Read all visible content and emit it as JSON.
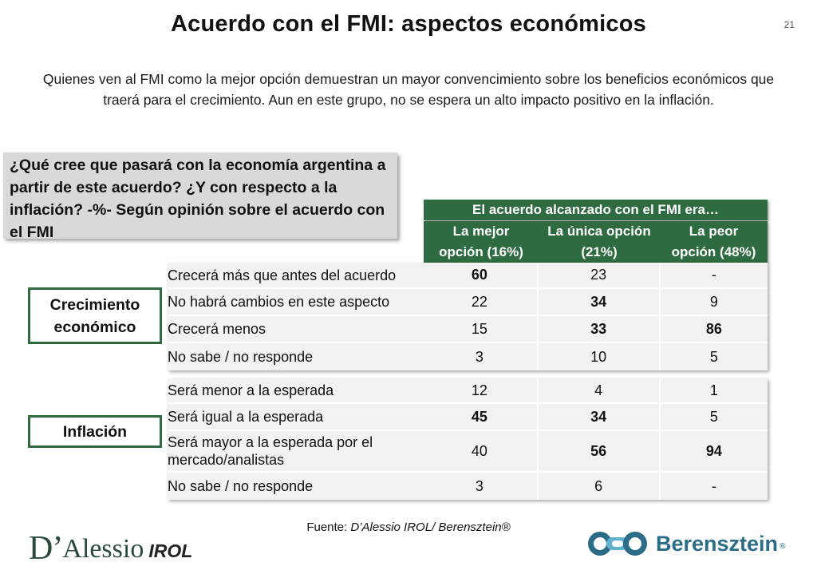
{
  "header": {
    "title": "Acuerdo con el FMI: aspectos económicos",
    "page_number": "21"
  },
  "subtitle": "Quienes ven al FMI como la mejor opción demuestran un mayor convencimiento sobre los beneficios económicos que traerá para el crecimiento. Aun en este grupo, no se espera un alto impacto positivo en la inflación.",
  "question": "¿Qué cree que pasará con la economía argentina a partir de este acuerdo? ¿Y con respecto a la inflación? -%- Según opinión sobre el acuerdo con el FMI",
  "table": {
    "group_header": "El acuerdo alcanzado con el FMI era…",
    "columns": [
      {
        "line1": "La mejor",
        "line2": "opción (16%)"
      },
      {
        "line1": "La única opción",
        "line2": "(21%)"
      },
      {
        "line1": "La peor",
        "line2": "opción (48%)"
      }
    ]
  },
  "sections": {
    "growth": {
      "label": "Crecimiento económico",
      "rows": [
        {
          "label": "Crecerá más que antes del acuerdo",
          "values": [
            "60",
            "23",
            "-"
          ],
          "bold": [
            true,
            false,
            false
          ]
        },
        {
          "label": "No habrá cambios en este aspecto",
          "values": [
            "22",
            "34",
            "9"
          ],
          "bold": [
            false,
            true,
            false
          ]
        },
        {
          "label": "Crecerá menos",
          "values": [
            "15",
            "33",
            "86"
          ],
          "bold": [
            false,
            true,
            true
          ]
        },
        {
          "label": "No sabe / no responde",
          "values": [
            "3",
            "10",
            "5"
          ],
          "bold": [
            false,
            false,
            false
          ]
        }
      ]
    },
    "inflation": {
      "label": "Inflación",
      "rows": [
        {
          "label": "Será menor a la esperada",
          "values": [
            "12",
            "4",
            "1"
          ],
          "bold": [
            false,
            false,
            false
          ]
        },
        {
          "label": "Será igual a la esperada",
          "values": [
            "45",
            "34",
            "5"
          ],
          "bold": [
            true,
            true,
            false
          ]
        },
        {
          "label": "Será mayor a la esperada por el mercado/analistas",
          "values": [
            "40",
            "56",
            "94"
          ],
          "bold": [
            false,
            true,
            true
          ]
        },
        {
          "label": "No sabe / no responde",
          "values": [
            "3",
            "6",
            "-"
          ],
          "bold": [
            false,
            false,
            false
          ]
        }
      ]
    }
  },
  "footer": {
    "source_prefix": "Fuente: ",
    "source_text": "D’Alessio IROL/ Berensztein®",
    "logo_left_d": "D’",
    "logo_left_name": "Alessio",
    "logo_left_irol": "IROL",
    "logo_right_name": "Berensztein",
    "logo_right_reg": "®"
  },
  "colors": {
    "accent_green": "#2e6b40",
    "cell_bg": "#f2f2f2",
    "question_bg": "#d9d9d9",
    "brand_blue": "#2b6d88"
  }
}
